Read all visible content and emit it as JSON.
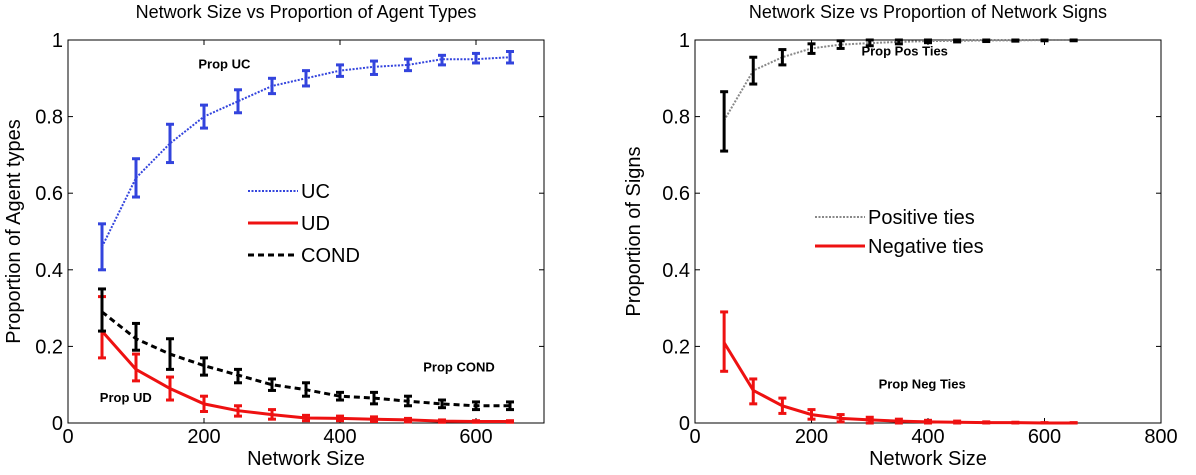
{
  "chart_data": [
    {
      "type": "line",
      "title": "Network Size vs Proportion of Agent Types",
      "xlabel": "Network Size",
      "ylabel": "Proportion of Agent types",
      "xlim": [
        0,
        700
      ],
      "ylim": [
        0,
        1
      ],
      "xticks": [
        "0",
        "200",
        "400",
        "600"
      ],
      "yticks": [
        "0",
        "0.2",
        "0.4",
        "0.6",
        "0.8",
        "1"
      ],
      "xtick_values": [
        0,
        200,
        400,
        600
      ],
      "ytick_values": [
        0,
        0.2,
        0.4,
        0.6,
        0.8,
        1
      ],
      "grid": false,
      "legend_position": "center-right",
      "x": [
        50,
        100,
        150,
        200,
        250,
        300,
        350,
        400,
        450,
        500,
        550,
        600,
        650
      ],
      "series": [
        {
          "name": "UC",
          "color": "#3344dd",
          "line_style": "dotted",
          "values": [
            0.46,
            0.64,
            0.73,
            0.8,
            0.84,
            0.88,
            0.9,
            0.92,
            0.93,
            0.935,
            0.95,
            0.95,
            0.955
          ],
          "err_low": [
            0.4,
            0.59,
            0.68,
            0.77,
            0.81,
            0.86,
            0.88,
            0.905,
            0.91,
            0.92,
            0.935,
            0.94,
            0.94
          ],
          "err_high": [
            0.52,
            0.69,
            0.78,
            0.83,
            0.87,
            0.9,
            0.92,
            0.935,
            0.945,
            0.95,
            0.96,
            0.965,
            0.97
          ]
        },
        {
          "name": "UD",
          "color": "#ee1111",
          "line_style": "solid",
          "values": [
            0.24,
            0.14,
            0.09,
            0.05,
            0.032,
            0.022,
            0.013,
            0.012,
            0.01,
            0.008,
            0.005,
            0.004,
            0.004
          ],
          "err_low": [
            0.17,
            0.11,
            0.06,
            0.03,
            0.018,
            0.01,
            0.006,
            0.006,
            0.004,
            0.003,
            0.002,
            0.002,
            0.002
          ],
          "err_high": [
            0.33,
            0.18,
            0.12,
            0.07,
            0.045,
            0.035,
            0.02,
            0.018,
            0.016,
            0.012,
            0.008,
            0.006,
            0.006
          ]
        },
        {
          "name": "COND",
          "color": "#000000",
          "line_style": "dashed",
          "values": [
            0.29,
            0.22,
            0.18,
            0.15,
            0.125,
            0.1,
            0.087,
            0.07,
            0.065,
            0.057,
            0.05,
            0.045,
            0.045
          ],
          "err_low": [
            0.24,
            0.19,
            0.14,
            0.125,
            0.105,
            0.085,
            0.07,
            0.06,
            0.05,
            0.045,
            0.04,
            0.035,
            0.035
          ],
          "err_high": [
            0.35,
            0.26,
            0.22,
            0.17,
            0.14,
            0.115,
            0.105,
            0.08,
            0.08,
            0.07,
            0.06,
            0.055,
            0.055
          ]
        }
      ],
      "annotations": [
        {
          "text": "Prop UC",
          "x": 230,
          "y": 0.925
        },
        {
          "text": "Prop UD",
          "x": 85,
          "y": 0.055
        },
        {
          "text": "Prop COND",
          "x": 575,
          "y": 0.135
        }
      ]
    },
    {
      "type": "line",
      "title": "Network Size vs Proportion of Network Signs",
      "xlabel": "Network Size",
      "ylabel": "Proportion of Signs",
      "xlim": [
        0,
        800
      ],
      "ylim": [
        0,
        1
      ],
      "xticks": [
        "0",
        "200",
        "400",
        "600",
        "800"
      ],
      "yticks": [
        "0",
        "0.2",
        "0.4",
        "0.6",
        "0.8",
        "1"
      ],
      "xtick_values": [
        0,
        200,
        400,
        600,
        800
      ],
      "ytick_values": [
        0,
        0.2,
        0.4,
        0.6,
        0.8,
        1
      ],
      "grid": false,
      "legend_position": "center",
      "x": [
        50,
        100,
        150,
        200,
        250,
        300,
        350,
        400,
        450,
        500,
        550,
        600,
        650
      ],
      "series": [
        {
          "name": "Positive ties",
          "color": "#888888",
          "line_style": "dotted",
          "values": [
            0.79,
            0.92,
            0.955,
            0.978,
            0.988,
            0.992,
            0.995,
            0.997,
            0.998,
            0.999,
            0.999,
            1.0,
            1.0
          ],
          "err_low": [
            0.71,
            0.885,
            0.935,
            0.965,
            0.978,
            0.985,
            0.99,
            0.993,
            0.995,
            0.996,
            0.997,
            0.998,
            0.998
          ],
          "err_high": [
            0.865,
            0.955,
            0.975,
            0.99,
            0.998,
            1.0,
            1.0,
            1.0,
            1.0,
            1.0,
            1.0,
            1.0,
            1.0
          ],
          "err_color": "#000000"
        },
        {
          "name": "Negative ties",
          "color": "#ee1111",
          "line_style": "solid",
          "values": [
            0.21,
            0.085,
            0.045,
            0.022,
            0.012,
            0.008,
            0.005,
            0.003,
            0.002,
            0.001,
            0.001,
            0.0,
            0.0
          ],
          "err_low": [
            0.135,
            0.05,
            0.025,
            0.01,
            0.003,
            0.0,
            0.0,
            0.0,
            0.0,
            0.0,
            0.0,
            0.0,
            0.0
          ],
          "err_high": [
            0.29,
            0.115,
            0.065,
            0.035,
            0.022,
            0.015,
            0.01,
            0.007,
            0.005,
            0.003,
            0.002,
            0.001,
            0.001
          ],
          "err_color": "#ee1111"
        }
      ],
      "annotations": [
        {
          "text": "Prop Pos Ties",
          "x": 360,
          "y": 0.96
        },
        {
          "text": "Prop Neg Ties",
          "x": 390,
          "y": 0.09
        }
      ]
    }
  ]
}
